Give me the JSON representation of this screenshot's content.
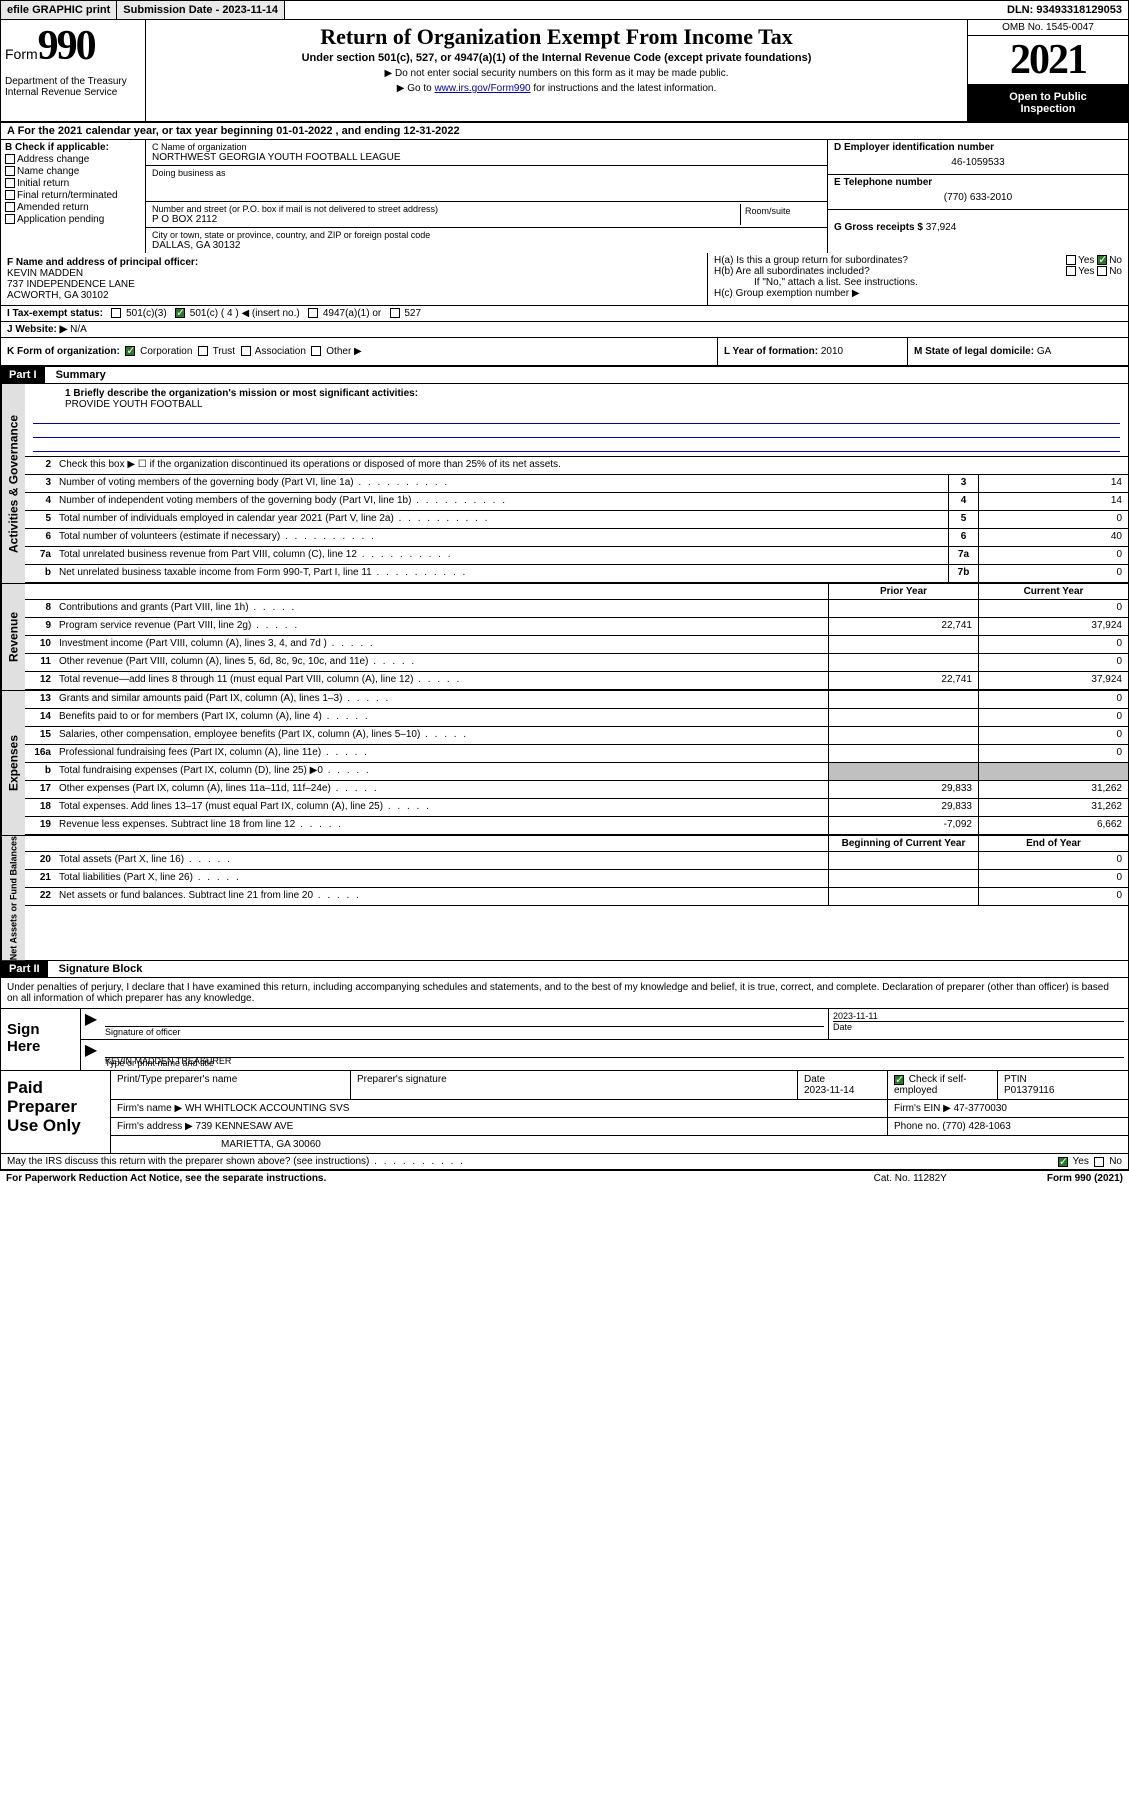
{
  "topbar": {
    "efile": "efile GRAPHIC print",
    "submission_label": "Submission Date - 2023-11-14",
    "dln": "DLN: 93493318129053"
  },
  "header": {
    "form_word": "Form",
    "form_num": "990",
    "dept": "Department of the Treasury Internal Revenue Service",
    "title": "Return of Organization Exempt From Income Tax",
    "subtitle": "Under section 501(c), 527, or 4947(a)(1) of the Internal Revenue Code (except private foundations)",
    "note1": "▶ Do not enter social security numbers on this form as it may be made public.",
    "note2_pre": "▶ Go to ",
    "note2_link": "www.irs.gov/Form990",
    "note2_post": " for instructions and the latest information.",
    "omb": "OMB No. 1545-0047",
    "year": "2021",
    "open1": "Open to Public",
    "open2": "Inspection"
  },
  "lineA": "A For the 2021 calendar year, or tax year beginning 01-01-2022   , and ending 12-31-2022",
  "blockB": {
    "hdr": "B Check if applicable:",
    "items": [
      "Address change",
      "Name change",
      "Initial return",
      "Final return/terminated",
      "Amended return",
      "Application pending"
    ]
  },
  "blockC": {
    "name_lbl": "C Name of organization",
    "name": "NORTHWEST GEORGIA YOUTH FOOTBALL LEAGUE",
    "dba_lbl": "Doing business as",
    "dba": "",
    "addr_lbl": "Number and street (or P.O. box if mail is not delivered to street address)",
    "room_lbl": "Room/suite",
    "addr": "P O BOX 2112",
    "city_lbl": "City or town, state or province, country, and ZIP or foreign postal code",
    "city": "DALLAS, GA  30132"
  },
  "blockDE": {
    "d_lbl": "D Employer identification number",
    "d_val": "46-1059533",
    "e_lbl": "E Telephone number",
    "e_val": "(770) 633-2010",
    "g_lbl": "G Gross receipts $",
    "g_val": "37,924"
  },
  "rowF": {
    "f_lbl": "F Name and address of principal officer:",
    "f_name": "KEVIN MADDEN",
    "f_addr1": "737 INDEPENDENCE LANE",
    "f_addr2": "ACWORTH, GA  30102"
  },
  "rowH": {
    "ha": "H(a)  Is this a group return for subordinates?",
    "hb": "H(b)  Are all subordinates included?",
    "hb_note": "If \"No,\" attach a list. See instructions.",
    "hc": "H(c)  Group exemption number ▶"
  },
  "rowI": {
    "lbl": "I   Tax-exempt status:",
    "opt1": "501(c)(3)",
    "opt2": "501(c) ( 4 ) ◀ (insert no.)",
    "opt3": "4947(a)(1) or",
    "opt4": "527"
  },
  "rowJ": {
    "lbl": "J   Website: ▶",
    "val": "N/A"
  },
  "rowK": {
    "lbl": "K Form of organization:",
    "o1": "Corporation",
    "o2": "Trust",
    "o3": "Association",
    "o4": "Other ▶"
  },
  "rowL": {
    "lbl": "L Year of formation:",
    "val": "2010"
  },
  "rowM": {
    "lbl": "M State of legal domicile:",
    "val": "GA"
  },
  "partI": {
    "hdr": "Part I",
    "title": "Summary",
    "q1": "1  Briefly describe the organization's mission or most significant activities:",
    "mission": "PROVIDE YOUTH FOOTBALL",
    "q2": "Check this box ▶  ☐  if the organization discontinued its operations or disposed of more than 25% of its net assets."
  },
  "sideTabs": {
    "t1": "Activities & Governance",
    "t2": "Revenue",
    "t3": "Expenses",
    "t4": "Net Assets or Fund Balances"
  },
  "govRows": [
    {
      "n": "3",
      "d": "Number of voting members of the governing body (Part VI, line 1a)",
      "b": "3",
      "v": "14"
    },
    {
      "n": "4",
      "d": "Number of independent voting members of the governing body (Part VI, line 1b)",
      "b": "4",
      "v": "14"
    },
    {
      "n": "5",
      "d": "Total number of individuals employed in calendar year 2021 (Part V, line 2a)",
      "b": "5",
      "v": "0"
    },
    {
      "n": "6",
      "d": "Total number of volunteers (estimate if necessary)",
      "b": "6",
      "v": "40"
    },
    {
      "n": "7a",
      "d": "Total unrelated business revenue from Part VIII, column (C), line 12",
      "b": "7a",
      "v": "0"
    },
    {
      "n": "b",
      "d": "Net unrelated business taxable income from Form 990-T, Part I, line 11",
      "b": "7b",
      "v": "0"
    }
  ],
  "colHdr": {
    "prior": "Prior Year",
    "current": "Current Year"
  },
  "revRows": [
    {
      "n": "8",
      "d": "Contributions and grants (Part VIII, line 1h)",
      "p": "",
      "c": "0"
    },
    {
      "n": "9",
      "d": "Program service revenue (Part VIII, line 2g)",
      "p": "22,741",
      "c": "37,924"
    },
    {
      "n": "10",
      "d": "Investment income (Part VIII, column (A), lines 3, 4, and 7d )",
      "p": "",
      "c": "0"
    },
    {
      "n": "11",
      "d": "Other revenue (Part VIII, column (A), lines 5, 6d, 8c, 9c, 10c, and 11e)",
      "p": "",
      "c": "0"
    },
    {
      "n": "12",
      "d": "Total revenue—add lines 8 through 11 (must equal Part VIII, column (A), line 12)",
      "p": "22,741",
      "c": "37,924"
    }
  ],
  "expRows": [
    {
      "n": "13",
      "d": "Grants and similar amounts paid (Part IX, column (A), lines 1–3)",
      "p": "",
      "c": "0"
    },
    {
      "n": "14",
      "d": "Benefits paid to or for members (Part IX, column (A), line 4)",
      "p": "",
      "c": "0"
    },
    {
      "n": "15",
      "d": "Salaries, other compensation, employee benefits (Part IX, column (A), lines 5–10)",
      "p": "",
      "c": "0"
    },
    {
      "n": "16a",
      "d": "Professional fundraising fees (Part IX, column (A), line 11e)",
      "p": "",
      "c": "0"
    },
    {
      "n": "b",
      "d": "Total fundraising expenses (Part IX, column (D), line 25) ▶0",
      "p": "shade",
      "c": "shade"
    },
    {
      "n": "17",
      "d": "Other expenses (Part IX, column (A), lines 11a–11d, 11f–24e)",
      "p": "29,833",
      "c": "31,262"
    },
    {
      "n": "18",
      "d": "Total expenses. Add lines 13–17 (must equal Part IX, column (A), line 25)",
      "p": "29,833",
      "c": "31,262"
    },
    {
      "n": "19",
      "d": "Revenue less expenses. Subtract line 18 from line 12",
      "p": "-7,092",
      "c": "6,662"
    }
  ],
  "balHdr": {
    "beg": "Beginning of Current Year",
    "end": "End of Year"
  },
  "balRows": [
    {
      "n": "20",
      "d": "Total assets (Part X, line 16)",
      "p": "",
      "c": "0"
    },
    {
      "n": "21",
      "d": "Total liabilities (Part X, line 26)",
      "p": "",
      "c": "0"
    },
    {
      "n": "22",
      "d": "Net assets or fund balances. Subtract line 21 from line 20",
      "p": "",
      "c": "0"
    }
  ],
  "partII": {
    "hdr": "Part II",
    "title": "Signature Block",
    "intro": "Under penalties of perjury, I declare that I have examined this return, including accompanying schedules and statements, and to the best of my knowledge and belief, it is true, correct, and complete. Declaration of preparer (other than officer) is based on all information of which preparer has any knowledge."
  },
  "sign": {
    "lbl": "Sign Here",
    "sig_lbl": "Signature of officer",
    "date_lbl": "Date",
    "date_val": "2023-11-11",
    "name": "KEVIN MADDEN  TREASURER",
    "name_lbl": "Type or print name and title"
  },
  "paid": {
    "lbl": "Paid Preparer Use Only",
    "h1": "Print/Type preparer's name",
    "h2": "Preparer's signature",
    "h3": "Date",
    "h3v": "2023-11-14",
    "h4": "Check ☑ if self-employed",
    "h5": "PTIN",
    "h5v": "P01379116",
    "firm_lbl": "Firm's name    ▶",
    "firm": "WH WHITLOCK ACCOUNTING SVS",
    "ein_lbl": "Firm's EIN ▶",
    "ein": "47-3770030",
    "addr_lbl": "Firm's address ▶",
    "addr1": "739 KENNESAW AVE",
    "addr2": "MARIETTA, GA  30060",
    "phone_lbl": "Phone no.",
    "phone": "(770) 428-1063"
  },
  "footer": {
    "q": "May the IRS discuss this return with the preparer shown above? (see instructions)",
    "yes": "Yes",
    "no": "No"
  },
  "bottom": {
    "l": "For Paperwork Reduction Act Notice, see the separate instructions.",
    "c": "Cat. No. 11282Y",
    "r": "Form 990 (2021)"
  }
}
